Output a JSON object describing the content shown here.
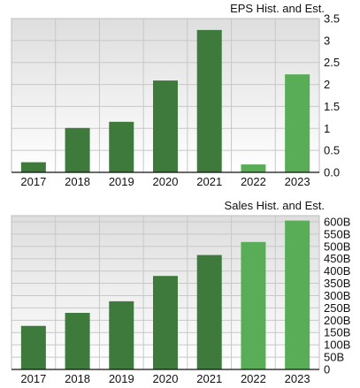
{
  "chart_data": [
    {
      "type": "bar",
      "title": "EPS Hist. and Est.",
      "categories": [
        "2017",
        "2018",
        "2019",
        "2020",
        "2021",
        "2022",
        "2023"
      ],
      "values": [
        0.23,
        1.01,
        1.15,
        2.09,
        3.24,
        0.18,
        2.23
      ],
      "estimated": [
        false,
        false,
        false,
        false,
        false,
        true,
        true
      ],
      "ylim": [
        0,
        3.5
      ],
      "yticks": [
        "0.0",
        "0.5",
        "1",
        "1.5",
        "2",
        "2.5",
        "3",
        "3.5"
      ],
      "ytick_values": [
        0,
        0.5,
        1,
        1.5,
        2,
        2.5,
        3,
        3.5
      ],
      "y_axis_side": "right",
      "grid": true,
      "colors": {
        "historical": "#3e7a3c",
        "estimate": "#59ad56",
        "plot_bg_top": "#e0e0e0",
        "plot_bg_bottom": "#ffffff",
        "grid": "#c8c8c8"
      }
    },
    {
      "type": "bar",
      "title": "Sales Hist. and Est.",
      "categories": [
        "2017",
        "2018",
        "2019",
        "2020",
        "2021",
        "2022",
        "2023"
      ],
      "values": [
        177,
        230,
        277,
        380,
        465,
        518,
        605
      ],
      "estimated": [
        false,
        false,
        false,
        false,
        false,
        true,
        true
      ],
      "ylim": [
        0,
        625
      ],
      "yticks": [
        "0",
        "50B",
        "100B",
        "150B",
        "200B",
        "250B",
        "300B",
        "350B",
        "400B",
        "450B",
        "500B",
        "550B",
        "600B"
      ],
      "ytick_values": [
        0,
        50,
        100,
        150,
        200,
        250,
        300,
        350,
        400,
        450,
        500,
        550,
        600
      ],
      "y_axis_side": "right",
      "grid": true,
      "colors": {
        "historical": "#3e7a3c",
        "estimate": "#59ad56",
        "plot_bg_top": "#e0e0e0",
        "plot_bg_bottom": "#ffffff",
        "grid": "#c8c8c8"
      }
    }
  ]
}
